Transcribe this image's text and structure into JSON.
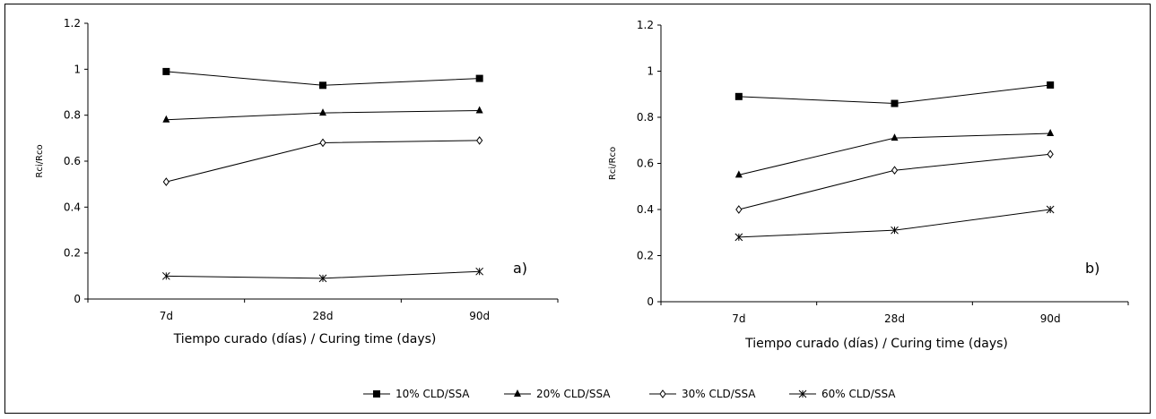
{
  "chart_data": [
    {
      "type": "line",
      "panel_label": "a)",
      "categories": [
        "7d",
        "28d",
        "90d"
      ],
      "xlabel": "Tiempo curado (días) / Curing time (days)",
      "ylabel": "Rci/Rco",
      "ylim": [
        0,
        1.2
      ],
      "yticks": [
        "0",
        "0.2",
        "0.4",
        "0.6",
        "0.8",
        "1",
        "1.2"
      ],
      "grid": false,
      "series": [
        {
          "name": "10% CLD/SSA",
          "marker": "square",
          "values": [
            0.99,
            0.93,
            0.96
          ]
        },
        {
          "name": "20% CLD/SSA",
          "marker": "triangle",
          "values": [
            0.78,
            0.81,
            0.82
          ]
        },
        {
          "name": "30% CLD/SSA",
          "marker": "diamond-open",
          "values": [
            0.51,
            0.68,
            0.69
          ]
        },
        {
          "name": "60% CLD/SSA",
          "marker": "star",
          "values": [
            0.1,
            0.09,
            0.12
          ]
        }
      ]
    },
    {
      "type": "line",
      "panel_label": "b)",
      "categories": [
        "7d",
        "28d",
        "90d"
      ],
      "xlabel": "Tiempo curado (días) / Curing time (days)",
      "ylabel": "Rci/Rco",
      "ylim": [
        0,
        1.2
      ],
      "yticks": [
        "0",
        "0.2",
        "0.4",
        "0.6",
        "0.8",
        "1",
        "1.2"
      ],
      "grid": false,
      "series": [
        {
          "name": "10% CLD/SSA",
          "marker": "square",
          "values": [
            0.89,
            0.86,
            0.94
          ]
        },
        {
          "name": "20% CLD/SSA",
          "marker": "triangle",
          "values": [
            0.55,
            0.71,
            0.73
          ]
        },
        {
          "name": "30% CLD/SSA",
          "marker": "diamond-open",
          "values": [
            0.4,
            0.57,
            0.64
          ]
        },
        {
          "name": "60% CLD/SSA",
          "marker": "star",
          "values": [
            0.28,
            0.31,
            0.4
          ]
        }
      ]
    }
  ],
  "legend": {
    "placement": "bottom",
    "items": [
      {
        "label": "10% CLD/SSA",
        "marker": "square"
      },
      {
        "label": "20% CLD/SSA",
        "marker": "triangle"
      },
      {
        "label": "30% CLD/SSA",
        "marker": "diamond-open"
      },
      {
        "label": "60% CLD/SSA",
        "marker": "star"
      }
    ]
  }
}
